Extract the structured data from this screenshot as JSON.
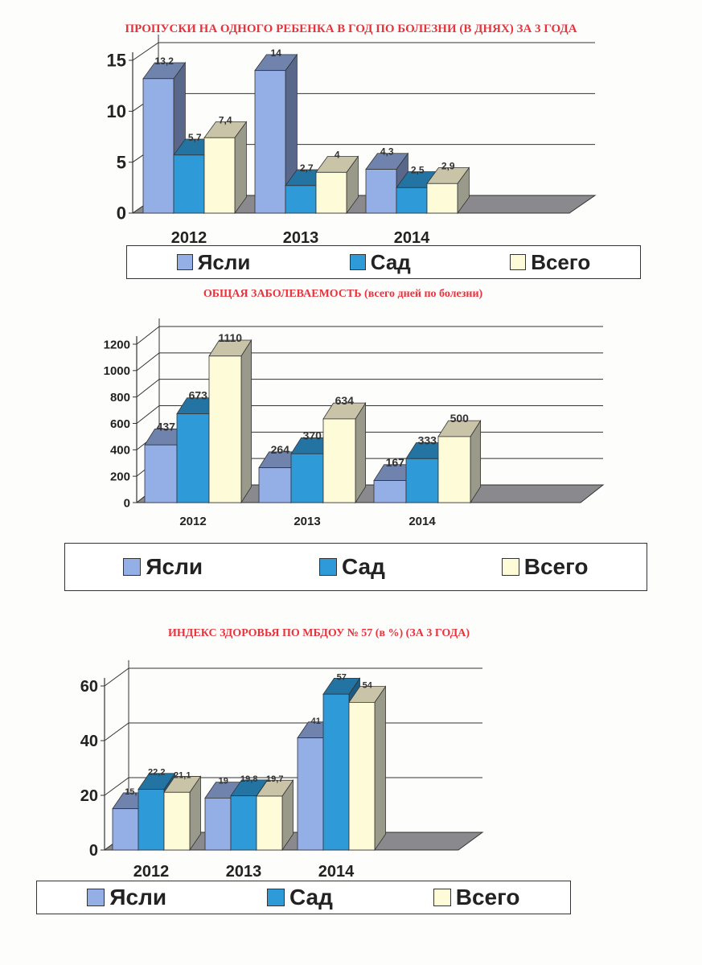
{
  "chart_data": [
    {
      "type": "bar",
      "title": "ПРОПУСКИ НА ОДНОГО РЕБЕНКА В ГОД  ПО БОЛЕЗНИ (В ДНЯХ) ЗА 3 ГОДА",
      "categories": [
        "2012",
        "2013",
        "2014"
      ],
      "series": [
        {
          "name": "Ясли",
          "values": [
            13.2,
            14,
            4.3
          ],
          "labels": [
            "13,2",
            "14",
            "4,3"
          ]
        },
        {
          "name": "Сад",
          "values": [
            5.7,
            2.7,
            2.5
          ],
          "labels": [
            "5,7",
            "2,7",
            "2,5"
          ]
        },
        {
          "name": "Всего",
          "values": [
            7.4,
            4,
            2.9
          ],
          "labels": [
            "7,4",
            "4",
            "2,9"
          ]
        }
      ],
      "yticks": [
        "0",
        "5",
        "10",
        "15"
      ],
      "ylim": [
        0,
        15
      ],
      "legend": "bottom"
    },
    {
      "type": "bar",
      "title": "ОБЩАЯ   ЗАБОЛЕВАЕМОСТЬ (всего дней по болезни)",
      "categories": [
        "2012",
        "2013",
        "2014"
      ],
      "series": [
        {
          "name": "Ясли",
          "values": [
            437,
            264,
            167
          ],
          "labels": [
            "437",
            "264",
            "167"
          ]
        },
        {
          "name": "Сад",
          "values": [
            673,
            370,
            333
          ],
          "labels": [
            "673",
            "370",
            "333"
          ]
        },
        {
          "name": "Всего",
          "values": [
            1110,
            634,
            500
          ],
          "labels": [
            "1110",
            "634",
            "500"
          ]
        }
      ],
      "yticks": [
        "0",
        "200",
        "400",
        "600",
        "800",
        "1000",
        "1200"
      ],
      "ylim": [
        0,
        1200
      ],
      "legend": "bottom"
    },
    {
      "type": "bar",
      "title": "ИНДЕКС ЗДОРОВЬЯ  ПО  МБДОУ № 57 (в %) (ЗА 3 ГОДА)",
      "categories": [
        "2012",
        "2013",
        "2014"
      ],
      "series": [
        {
          "name": "Ясли",
          "values": [
            15.1,
            19,
            41
          ],
          "labels": [
            "15,",
            "19",
            "41"
          ]
        },
        {
          "name": "Сад",
          "values": [
            22.2,
            19.8,
            57
          ],
          "labels": [
            "22,2",
            "19,8",
            "57"
          ]
        },
        {
          "name": "Всего",
          "values": [
            21.1,
            19.7,
            54
          ],
          "labels": [
            "21,1",
            "19,7",
            "54"
          ]
        }
      ],
      "yticks": [
        "0",
        "20",
        "40",
        "60"
      ],
      "ylim": [
        0,
        60
      ],
      "legend": "bottom"
    }
  ],
  "colors": {
    "title": "#e8323c",
    "yasli": "#94aee6",
    "sad": "#2e9ad8",
    "vsego": "#fdfbd8"
  }
}
